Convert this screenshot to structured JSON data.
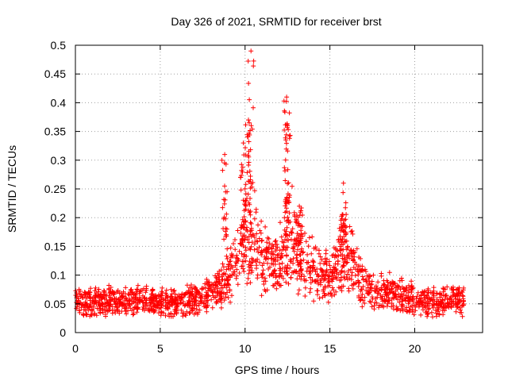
{
  "chart_data": {
    "type": "scatter",
    "title": "Day 326 of 2021, SRMTID for receiver brst",
    "xlabel": "GPS time / hours",
    "ylabel": "SRMTID / TECUs",
    "xlim": [
      0,
      24
    ],
    "ylim": [
      0,
      0.5
    ],
    "x_ticks": [
      0,
      5,
      10,
      15,
      20
    ],
    "x_tick_labels": [
      "0",
      "5",
      "10",
      "15",
      "20"
    ],
    "y_ticks": [
      0,
      0.05,
      0.1,
      0.15,
      0.2,
      0.25,
      0.3,
      0.35,
      0.4,
      0.45,
      0.5
    ],
    "y_tick_labels": [
      "0",
      "0.05",
      "0.1",
      "0.15",
      "0.2",
      "0.25",
      "0.3",
      "0.35",
      "0.4",
      "0.45",
      "0.5"
    ],
    "grid": true,
    "marker": "+",
    "marker_color": "#ff0000",
    "series": [
      {
        "name": "SRMTID",
        "x_range": [
          0,
          22.9
        ],
        "description_profile": [
          {
            "x": 0,
            "y": 0.055
          },
          {
            "x": 2,
            "y": 0.055
          },
          {
            "x": 4,
            "y": 0.055
          },
          {
            "x": 6,
            "y": 0.05
          },
          {
            "x": 7.5,
            "y": 0.06
          },
          {
            "x": 8.5,
            "y": 0.075
          },
          {
            "x": 9.5,
            "y": 0.12
          },
          {
            "x": 10.2,
            "y": 0.2
          },
          {
            "x": 11,
            "y": 0.13
          },
          {
            "x": 12,
            "y": 0.12
          },
          {
            "x": 12.5,
            "y": 0.19
          },
          {
            "x": 13.5,
            "y": 0.12
          },
          {
            "x": 15,
            "y": 0.09
          },
          {
            "x": 15.8,
            "y": 0.15
          },
          {
            "x": 17,
            "y": 0.08
          },
          {
            "x": 19,
            "y": 0.065
          },
          {
            "x": 21,
            "y": 0.055
          },
          {
            "x": 22.9,
            "y": 0.055
          }
        ],
        "peaks": [
          {
            "x": 10.35,
            "y": 0.49
          },
          {
            "x": 10.2,
            "y": 0.37
          },
          {
            "x": 12.45,
            "y": 0.41
          },
          {
            "x": 12.5,
            "y": 0.36
          },
          {
            "x": 15.8,
            "y": 0.26
          },
          {
            "x": 13.2,
            "y": 0.22
          },
          {
            "x": 9.9,
            "y": 0.33
          },
          {
            "x": 8.8,
            "y": 0.31
          }
        ]
      }
    ]
  }
}
